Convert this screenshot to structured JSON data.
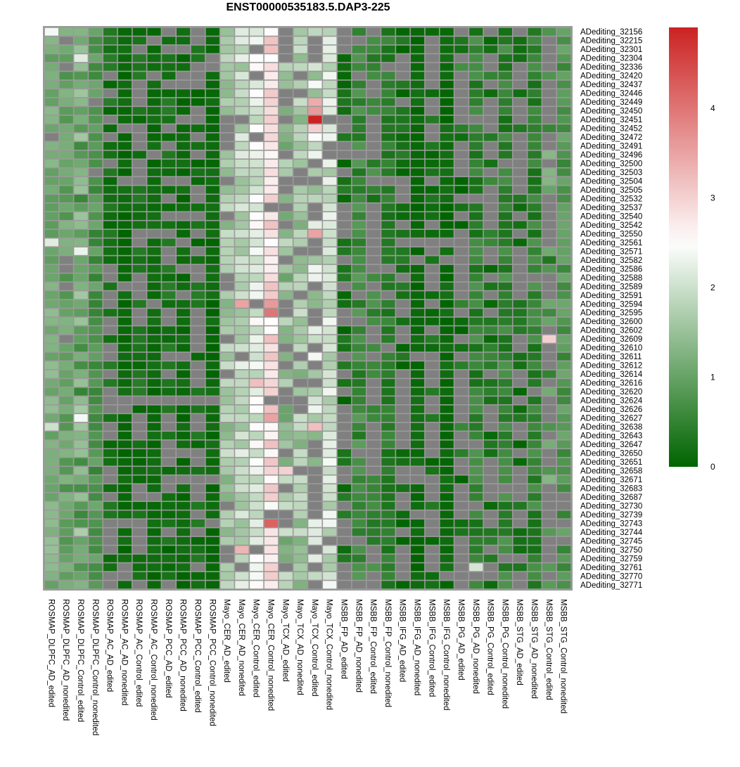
{
  "chart_data": {
    "type": "heatmap",
    "title": "ENST00000535183.5.DAP3-225",
    "na_color": "#808080",
    "color_scale": {
      "min": 0,
      "mid": 2.5,
      "max": 4.9,
      "low_color": "#006400",
      "mid_color": "#ffffff",
      "high_color": "#cc2222",
      "ticks": [
        "0",
        "1",
        "2",
        "3",
        "4"
      ]
    },
    "columns": [
      "ROSMAP_DLPFC_AD_edited",
      "ROSMAP_DLPFC_AD_nonedited",
      "ROSMAP_DLPFC_Control_edited",
      "ROSMAP_DLPFC_Control_nonedited",
      "ROSMAP_AC_AD_edited",
      "ROSMAP_AC_AD_nonedited",
      "ROSMAP_AC_Control_edited",
      "ROSMAP_AC_Control_nonedited",
      "ROSMAP_PCC_AD_edited",
      "ROSMAP_PCC_AD_nonedited",
      "ROSMAP_PCC_Control_edited",
      "ROSMAP_PCC_Control_nonedited",
      "Mayo_CER_AD_edited",
      "Mayo_CER_AD_nonedited",
      "Mayo_CER_Control_edited",
      "Mayo_CER_Control_nonedited",
      "Mayo_TCX_AD_edited",
      "Mayo_TCX_AD_nonedited",
      "Mayo_TCX_Control_edited",
      "Mayo_TCX_Control_nonedited",
      "MSBB_FP_AD_edited",
      "MSBB_FP_AD_nonedited",
      "MSBB_FP_Control_edited",
      "MSBB_FP_Control_nonedited",
      "MSBB_IFG_AD_edited",
      "MSBB_IFG_AD_nonedited",
      "MSBB_IFG_Control_edited",
      "MSBB_IFG_Control_nonedited",
      "MSBB_PG_AD_edited",
      "MSBB_PG_AD_nonedited",
      "MSBB_PG_Control_edited",
      "MSBB_PG_Control_nonedited",
      "MSBB_STG_AD_edited",
      "MSBB_STG_AD_nonedited",
      "MSBB_STG_Control_edited",
      "MSBB_STG_Control_nonedited"
    ],
    "rows": [
      "ADediting_32156",
      "ADediting_32215",
      "ADediting_32301",
      "ADediting_32304",
      "ADediting_32336",
      "ADediting_32420",
      "ADediting_32437",
      "ADediting_32446",
      "ADediting_32449",
      "ADediting_32450",
      "ADediting_32451",
      "ADediting_32452",
      "ADediting_32472",
      "ADediting_32491",
      "ADediting_32496",
      "ADediting_32500",
      "ADediting_32503",
      "ADediting_32504",
      "ADediting_32505",
      "ADediting_32532",
      "ADediting_32537",
      "ADediting_32540",
      "ADediting_32542",
      "ADediting_32550",
      "ADediting_32561",
      "ADediting_32571",
      "ADediting_32582",
      "ADediting_32586",
      "ADediting_32588",
      "ADediting_32589",
      "ADediting_32591",
      "ADediting_32594",
      "ADediting_32595",
      "ADediting_32600",
      "ADediting_32602",
      "ADediting_32609",
      "ADediting_32610",
      "ADediting_32611",
      "ADediting_32612",
      "ADediting_32614",
      "ADediting_32616",
      "ADediting_32620",
      "ADediting_32624",
      "ADediting_32626",
      "ADediting_32627",
      "ADediting_32638",
      "ADediting_32643",
      "ADediting_32647",
      "ADediting_32650",
      "ADediting_32651",
      "ADediting_32658",
      "ADediting_32671",
      "ADediting_32683",
      "ADediting_32687",
      "ADediting_32730",
      "ADediting_32739",
      "ADediting_32743",
      "ADediting_32744",
      "ADediting_32745",
      "ADediting_32750",
      "ADediting_32759",
      "ADediting_32761",
      "ADediting_32770",
      "ADediting_32771"
    ],
    "column_profiles": [
      {
        "na_rate": 0.05,
        "mean": 1.2,
        "spread": 0.3
      },
      {
        "na_rate": 0.05,
        "mean": 1.0,
        "spread": 0.3
      },
      {
        "na_rate": 0.05,
        "mean": 1.1,
        "spread": 0.6
      },
      {
        "na_rate": 0.05,
        "mean": 0.8,
        "spread": 0.3
      },
      {
        "na_rate": 0.45,
        "mean": 0.2,
        "spread": 0.2
      },
      {
        "na_rate": 0.1,
        "mean": 0.1,
        "spread": 0.1
      },
      {
        "na_rate": 0.45,
        "mean": 0.2,
        "spread": 0.2
      },
      {
        "na_rate": 0.1,
        "mean": 0.1,
        "spread": 0.1
      },
      {
        "na_rate": 0.45,
        "mean": 0.2,
        "spread": 0.2
      },
      {
        "na_rate": 0.3,
        "mean": 0.1,
        "spread": 0.1
      },
      {
        "na_rate": 0.45,
        "mean": 0.2,
        "spread": 0.2
      },
      {
        "na_rate": 0.05,
        "mean": 0.1,
        "spread": 0.1
      },
      {
        "na_rate": 0.15,
        "mean": 1.6,
        "spread": 0.4
      },
      {
        "na_rate": 0.05,
        "mean": 1.9,
        "spread": 0.4
      },
      {
        "na_rate": 0.1,
        "mean": 2.2,
        "spread": 0.4
      },
      {
        "na_rate": 0.05,
        "mean": 2.8,
        "spread": 0.4
      },
      {
        "na_rate": 0.35,
        "mean": 1.5,
        "spread": 0.5
      },
      {
        "na_rate": 0.2,
        "mean": 1.6,
        "spread": 0.4
      },
      {
        "na_rate": 0.35,
        "mean": 1.9,
        "spread": 0.6
      },
      {
        "na_rate": 0.05,
        "mean": 2.0,
        "spread": 0.4
      },
      {
        "na_rate": 0.55,
        "mean": 0.2,
        "spread": 0.2
      },
      {
        "na_rate": 0.1,
        "mean": 0.6,
        "spread": 0.3
      },
      {
        "na_rate": 0.55,
        "mean": 0.5,
        "spread": 0.3
      },
      {
        "na_rate": 0.05,
        "mean": 0.4,
        "spread": 0.2
      },
      {
        "na_rate": 0.55,
        "mean": 0.2,
        "spread": 0.2
      },
      {
        "na_rate": 0.05,
        "mean": 0.1,
        "spread": 0.1
      },
      {
        "na_rate": 0.6,
        "mean": 0.2,
        "spread": 0.2
      },
      {
        "na_rate": 0.05,
        "mean": 0.1,
        "spread": 0.1
      },
      {
        "na_rate": 0.55,
        "mean": 0.3,
        "spread": 0.4
      },
      {
        "na_rate": 0.05,
        "mean": 0.5,
        "spread": 0.3
      },
      {
        "na_rate": 0.55,
        "mean": 0.3,
        "spread": 0.3
      },
      {
        "na_rate": 0.1,
        "mean": 0.5,
        "spread": 0.3
      },
      {
        "na_rate": 0.55,
        "mean": 0.2,
        "spread": 0.2
      },
      {
        "na_rate": 0.05,
        "mean": 0.5,
        "spread": 0.3
      },
      {
        "na_rate": 0.7,
        "mean": 0.8,
        "spread": 0.6
      },
      {
        "na_rate": 0.05,
        "mean": 0.8,
        "spread": 0.3
      }
    ],
    "highlight_cells": [
      {
        "row": "ADediting_32156",
        "col": "ROSMAP_DLPFC_AD_edited",
        "value": 2.4
      },
      {
        "row": "ADediting_32304",
        "col": "ROSMAP_DLPFC_Control_edited",
        "value": 2.2
      },
      {
        "row": "ADediting_32561",
        "col": "ROSMAP_DLPFC_AD_edited",
        "value": 2.2
      },
      {
        "row": "ADediting_32571",
        "col": "ROSMAP_DLPFC_Control_edited",
        "value": 2.3
      },
      {
        "row": "ADediting_32627",
        "col": "ROSMAP_DLPFC_Control_edited",
        "value": 2.4
      },
      {
        "row": "ADediting_32638",
        "col": "ROSMAP_DLPFC_AD_edited",
        "value": 2.0
      },
      {
        "row": "ADediting_32449",
        "col": "Mayo_TCX_Control_edited",
        "value": 3.4
      },
      {
        "row": "ADediting_32450",
        "col": "Mayo_TCX_Control_edited",
        "value": 3.6
      },
      {
        "row": "ADediting_32451",
        "col": "Mayo_TCX_Control_edited",
        "value": 4.9
      },
      {
        "row": "ADediting_32452",
        "col": "Mayo_TCX_Control_edited",
        "value": 3.0
      },
      {
        "row": "ADediting_32550",
        "col": "Mayo_TCX_Control_edited",
        "value": 3.5
      },
      {
        "row": "ADediting_32594",
        "col": "Mayo_CER_AD_nonedited",
        "value": 3.5
      },
      {
        "row": "ADediting_32594",
        "col": "Mayo_CER_Control_nonedited",
        "value": 3.6
      },
      {
        "row": "ADediting_32595",
        "col": "Mayo_CER_Control_nonedited",
        "value": 4.0
      },
      {
        "row": "ADediting_32616",
        "col": "Mayo_CER_Control_edited",
        "value": 3.2
      },
      {
        "row": "ADediting_32627",
        "col": "Mayo_CER_Control_nonedited",
        "value": 3.5
      },
      {
        "row": "ADediting_32638",
        "col": "Mayo_TCX_Control_edited",
        "value": 3.2
      },
      {
        "row": "ADediting_32658",
        "col": "Mayo_TCX_AD_edited",
        "value": 3.0
      },
      {
        "row": "ADediting_32743",
        "col": "Mayo_CER_Control_nonedited",
        "value": 4.2
      },
      {
        "row": "ADediting_32750",
        "col": "Mayo_CER_AD_nonedited",
        "value": 3.3
      },
      {
        "row": "ADediting_32609",
        "col": "MSBB_STG_Control_edited",
        "value": 3.0
      },
      {
        "row": "ADediting_32761",
        "col": "MSBB_PG_AD_nonedited",
        "value": 2.1
      }
    ]
  }
}
